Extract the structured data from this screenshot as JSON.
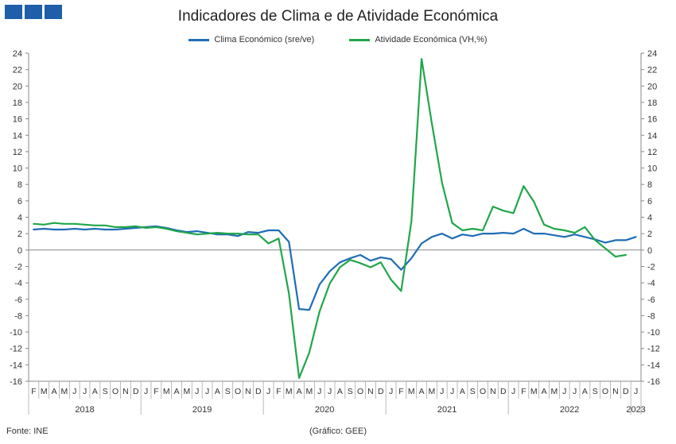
{
  "logo": {
    "icon": "ine-logo-icon",
    "color": "#1f5ea8"
  },
  "footer": {
    "source": "Fonte: INE",
    "credit": "(Gráfico: GEE)"
  },
  "chart_data": {
    "type": "line",
    "title": "Indicadores de Clima e de Atividade Económica",
    "legend_position": "top-center",
    "grid": false,
    "ylim": [
      -16,
      24
    ],
    "ytick_step": 2,
    "y_axes": "left-and-right (same scale)",
    "month_labels": [
      "F",
      "M",
      "A",
      "M",
      "J",
      "J",
      "A",
      "S",
      "O",
      "N",
      "D",
      "J",
      "F",
      "M",
      "A",
      "M",
      "J",
      "J",
      "A",
      "S",
      "O",
      "N",
      "D",
      "J",
      "F",
      "M",
      "A",
      "M",
      "J",
      "J",
      "A",
      "S",
      "O",
      "N",
      "D",
      "J",
      "F",
      "M",
      "A",
      "M",
      "J",
      "J",
      "A",
      "S",
      "O",
      "N",
      "D",
      "J",
      "F",
      "M",
      "A",
      "M",
      "J",
      "J",
      "A",
      "S",
      "O",
      "N",
      "D",
      "J"
    ],
    "years": [
      {
        "label": "2018",
        "months": 11
      },
      {
        "label": "2019",
        "months": 12
      },
      {
        "label": "2020",
        "months": 12
      },
      {
        "label": "2021",
        "months": 12
      },
      {
        "label": "2022",
        "months": 12
      },
      {
        "label": "2023",
        "months": 1
      }
    ],
    "series": [
      {
        "name": "Clima Económico (sre/ve)",
        "color": "#1f6db5",
        "values": [
          2.5,
          2.6,
          2.5,
          2.5,
          2.6,
          2.5,
          2.6,
          2.5,
          2.5,
          2.6,
          2.7,
          2.8,
          2.9,
          2.7,
          2.4,
          2.2,
          2.3,
          2.1,
          1.9,
          1.9,
          1.7,
          2.2,
          2.1,
          2.4,
          2.4,
          1.0,
          -7.2,
          -7.3,
          -4.2,
          -2.6,
          -1.5,
          -1.0,
          -0.6,
          -1.3,
          -0.9,
          -1.1,
          -2.4,
          -1.0,
          0.8,
          1.6,
          2.0,
          1.4,
          1.9,
          1.7,
          2.0,
          2.0,
          2.1,
          2.0,
          2.6,
          2.0,
          2.0,
          1.8,
          1.6,
          1.9,
          1.6,
          1.3,
          0.9,
          1.2,
          1.2,
          1.6
        ]
      },
      {
        "name": "Atividade Económica (VH,%)",
        "color": "#21a64a",
        "values": [
          3.2,
          3.1,
          3.3,
          3.2,
          3.2,
          3.1,
          3.0,
          3.0,
          2.8,
          2.8,
          2.9,
          2.7,
          2.8,
          2.6,
          2.3,
          2.1,
          1.9,
          2.0,
          2.1,
          2.0,
          2.0,
          1.9,
          1.9,
          0.8,
          1.4,
          -5.3,
          -15.6,
          -12.5,
          -7.5,
          -4.1,
          -2.1,
          -1.2,
          -1.6,
          -2.1,
          -1.5,
          -3.6,
          -5.0,
          3.5,
          23.3,
          15.5,
          8.2,
          3.3,
          2.4,
          2.6,
          2.4,
          5.3,
          4.8,
          4.5,
          7.8,
          5.9,
          3.1,
          2.6,
          2.4,
          2.1,
          2.8,
          1.2,
          0.2,
          -0.8,
          -0.6
        ]
      }
    ]
  }
}
